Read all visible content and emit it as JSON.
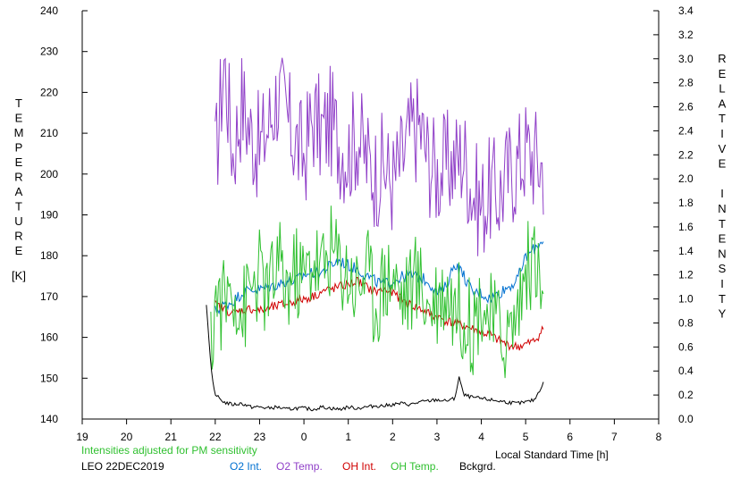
{
  "chart_data": {
    "type": "line",
    "xlabel": "Local Standard Time [h]",
    "x_ticks": [
      "19",
      "20",
      "21",
      "22",
      "23",
      "0",
      "1",
      "2",
      "3",
      "4",
      "5",
      "6",
      "7",
      "8"
    ],
    "ylabel_left": "TEMPERATURE",
    "ylabel_left_unit": "[K]",
    "ylim_left": [
      140,
      240
    ],
    "yticks_left": [
      "140",
      "150",
      "160",
      "170",
      "180",
      "190",
      "200",
      "210",
      "220",
      "230",
      "240"
    ],
    "ylabel_right": "RELATIVE INTENSITY",
    "ylim_right": [
      0.0,
      3.4
    ],
    "yticks_right": [
      "0.0",
      "0.2",
      "0.4",
      "0.6",
      "0.8",
      "1.0",
      "1.2",
      "1.4",
      "1.6",
      "1.8",
      "2.0",
      "2.2",
      "2.4",
      "2.6",
      "2.8",
      "3.0",
      "3.2",
      "3.4"
    ],
    "note": "Intensities adjusted for PM sensitivity",
    "station": "LEO 22DEC2019",
    "colors": {
      "o2_int": "#0070d0",
      "o2_temp": "#9040c8",
      "oh_int": "#d00000",
      "oh_temp": "#30c030",
      "bckgrd": "#000000",
      "note": "#30c030"
    },
    "legend": [
      {
        "name": "O2 Int.",
        "color": "#0070d0"
      },
      {
        "name": "O2 Temp.",
        "color": "#9040c8"
      },
      {
        "name": "OH Int.",
        "color": "#d00000"
      },
      {
        "name": "OH Temp.",
        "color": "#30c030"
      },
      {
        "name": "Bckgrd.",
        "color": "#000000"
      }
    ],
    "series": [
      {
        "name": "O2 Temp.",
        "axis": "left",
        "color": "#9040c8",
        "x": [
          22.0,
          22.2,
          22.4,
          22.6,
          22.8,
          23.0,
          23.2,
          23.4,
          23.6,
          23.8,
          24.0,
          24.2,
          24.4,
          24.6,
          24.8,
          25.0,
          25.2,
          25.4,
          25.6,
          25.8,
          26.0,
          26.2,
          26.4,
          26.6,
          26.8,
          27.0,
          27.2,
          27.4,
          27.6,
          27.8,
          28.0,
          28.2,
          28.4,
          28.6,
          28.8,
          29.0,
          29.2,
          29.4
        ],
        "y": [
          202,
          228,
          205,
          218,
          210,
          206,
          212,
          220,
          214,
          208,
          204,
          214,
          210,
          213,
          208,
          205,
          210,
          204,
          200,
          202,
          198,
          203,
          210,
          212,
          204,
          200,
          202,
          203,
          205,
          196,
          192,
          196,
          195,
          200,
          202,
          206,
          204,
          202
        ]
      },
      {
        "name": "O2 Int.",
        "axis": "right",
        "color": "#0070d0",
        "x": [
          22.0,
          22.2,
          22.4,
          22.6,
          22.8,
          23.0,
          23.2,
          23.4,
          23.6,
          23.8,
          24.0,
          24.2,
          24.4,
          24.6,
          24.8,
          25.0,
          25.2,
          25.4,
          25.6,
          25.8,
          26.0,
          26.2,
          26.4,
          26.6,
          26.8,
          27.0,
          27.2,
          27.4,
          27.6,
          27.8,
          28.0,
          28.2,
          28.4,
          28.6,
          28.8,
          29.0,
          29.2,
          29.4
        ],
        "y": [
          0.9,
          0.95,
          0.98,
          1.05,
          1.08,
          1.08,
          1.1,
          1.12,
          1.15,
          1.15,
          1.2,
          1.22,
          1.22,
          1.28,
          1.32,
          1.28,
          1.25,
          1.2,
          1.15,
          1.12,
          1.15,
          1.18,
          1.2,
          1.18,
          1.15,
          1.05,
          1.1,
          1.3,
          1.2,
          1.05,
          1.05,
          1.0,
          1.05,
          1.1,
          1.15,
          1.35,
          1.42,
          1.5
        ]
      },
      {
        "name": "OH Int.",
        "axis": "right",
        "color": "#d00000",
        "x": [
          22.0,
          22.2,
          22.4,
          22.6,
          22.8,
          23.0,
          23.2,
          23.4,
          23.6,
          23.8,
          24.0,
          24.2,
          24.4,
          24.6,
          24.8,
          25.0,
          25.2,
          25.4,
          25.6,
          25.8,
          26.0,
          26.2,
          26.4,
          26.6,
          26.8,
          27.0,
          27.2,
          27.4,
          27.6,
          27.8,
          28.0,
          28.2,
          28.4,
          28.6,
          28.8,
          29.0,
          29.2,
          29.4
        ],
        "y": [
          0.95,
          0.92,
          0.88,
          0.9,
          0.92,
          0.9,
          0.92,
          0.94,
          0.96,
          0.98,
          1.0,
          1.02,
          1.06,
          1.08,
          1.1,
          1.12,
          1.15,
          1.1,
          1.06,
          1.08,
          1.05,
          1.0,
          0.95,
          0.92,
          0.88,
          0.85,
          0.82,
          0.8,
          0.78,
          0.75,
          0.72,
          0.7,
          0.65,
          0.62,
          0.6,
          0.62,
          0.65,
          0.75
        ]
      },
      {
        "name": "OH Temp.",
        "axis": "left",
        "color": "#30c030",
        "x": [
          21.9,
          22.0,
          22.2,
          22.4,
          22.6,
          22.8,
          23.0,
          23.2,
          23.4,
          23.6,
          23.8,
          24.0,
          24.2,
          24.4,
          24.6,
          24.8,
          25.0,
          25.2,
          25.4,
          25.6,
          25.8,
          26.0,
          26.2,
          26.4,
          26.6,
          26.8,
          27.0,
          27.2,
          27.4,
          27.6,
          27.8,
          28.0,
          28.2,
          28.4,
          28.6,
          28.8,
          29.0,
          29.2,
          29.4
        ],
        "y": [
          155,
          170,
          168,
          174,
          165,
          172,
          175,
          170,
          178,
          172,
          176,
          174,
          180,
          176,
          182,
          178,
          176,
          172,
          178,
          168,
          174,
          176,
          170,
          172,
          174,
          168,
          170,
          172,
          168,
          166,
          162,
          170,
          164,
          162,
          160,
          166,
          176,
          180,
          167
        ]
      },
      {
        "name": "Bckgrd.",
        "axis": "right",
        "color": "#000000",
        "x": [
          21.8,
          21.85,
          21.9,
          21.95,
          22.0,
          22.2,
          22.4,
          22.6,
          22.8,
          23.0,
          23.2,
          23.4,
          23.6,
          23.8,
          24.0,
          24.2,
          24.4,
          24.6,
          24.8,
          25.0,
          25.2,
          25.4,
          25.6,
          25.8,
          26.0,
          26.2,
          26.4,
          26.6,
          26.8,
          27.0,
          27.2,
          27.4,
          27.5,
          27.6,
          27.8,
          28.0,
          28.2,
          28.4,
          28.6,
          28.8,
          29.0,
          29.2,
          29.4
        ],
        "y": [
          0.95,
          0.7,
          0.45,
          0.3,
          0.2,
          0.14,
          0.12,
          0.13,
          0.1,
          0.1,
          0.09,
          0.1,
          0.08,
          0.09,
          0.09,
          0.08,
          0.1,
          0.09,
          0.08,
          0.1,
          0.09,
          0.1,
          0.11,
          0.11,
          0.12,
          0.13,
          0.12,
          0.14,
          0.15,
          0.16,
          0.15,
          0.17,
          0.35,
          0.2,
          0.18,
          0.17,
          0.16,
          0.15,
          0.14,
          0.13,
          0.14,
          0.16,
          0.3
        ]
      }
    ]
  }
}
